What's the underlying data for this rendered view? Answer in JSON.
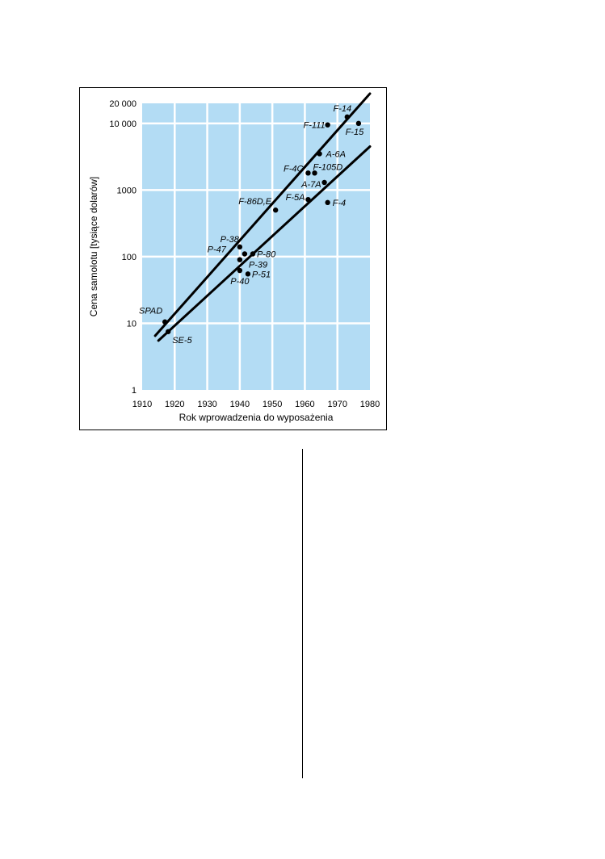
{
  "chart_data": {
    "type": "scatter",
    "title": "",
    "xlabel": "Rok wprowadzenia do wyposażenia",
    "ylabel": "Cena samolotu [tysiące dolarów]",
    "xlim": [
      1910,
      1980
    ],
    "ylim": [
      1,
      20000
    ],
    "y_scale": "log",
    "grid": true,
    "background_color": "#b3dcf4",
    "x_ticks": [
      "1910",
      "1920",
      "1930",
      "1940",
      "1950",
      "1960",
      "1970",
      "1980"
    ],
    "x_tick_values": [
      1910,
      1920,
      1930,
      1940,
      1950,
      1960,
      1970,
      1980
    ],
    "y_ticks": [
      "1",
      "10",
      "100",
      "1000",
      "10 000",
      "20 000"
    ],
    "y_tick_values": [
      1,
      10,
      100,
      1000,
      10000,
      20000
    ],
    "points": [
      {
        "label": "SPAD",
        "x": 1917,
        "y": 10.5
      },
      {
        "label": "SE-5",
        "x": 1918,
        "y": 7.5
      },
      {
        "label": "P-38",
        "x": 1940,
        "y": 140
      },
      {
        "label": "P-47",
        "x": 1941.5,
        "y": 110
      },
      {
        "label": "P-80",
        "x": 1944,
        "y": 110
      },
      {
        "label": "P-39",
        "x": 1940,
        "y": 90
      },
      {
        "label": "P-40",
        "x": 1940,
        "y": 62
      },
      {
        "label": "P-51",
        "x": 1942.5,
        "y": 55
      },
      {
        "label": "F-86D,E",
        "x": 1951,
        "y": 500
      },
      {
        "label": "F-5A",
        "x": 1961,
        "y": 720
      },
      {
        "label": "F-4",
        "x": 1967,
        "y": 650
      },
      {
        "label": "A-7A",
        "x": 1966,
        "y": 1300
      },
      {
        "label": "F-4C",
        "x": 1961,
        "y": 1800
      },
      {
        "label": "F-105D",
        "x": 1963,
        "y": 1800
      },
      {
        "label": "A-6A",
        "x": 1964.5,
        "y": 3500
      },
      {
        "label": "F-111",
        "x": 1967,
        "y": 9500
      },
      {
        "label": "F-14",
        "x": 1973,
        "y": 12500
      },
      {
        "label": "F-15",
        "x": 1976.5,
        "y": 10000
      }
    ],
    "trend_lines": [
      {
        "from": [
          1914,
          6.5
        ],
        "to": [
          1980,
          28000
        ]
      },
      {
        "from": [
          1915,
          5.5
        ],
        "to": [
          1980,
          4500
        ]
      }
    ]
  }
}
